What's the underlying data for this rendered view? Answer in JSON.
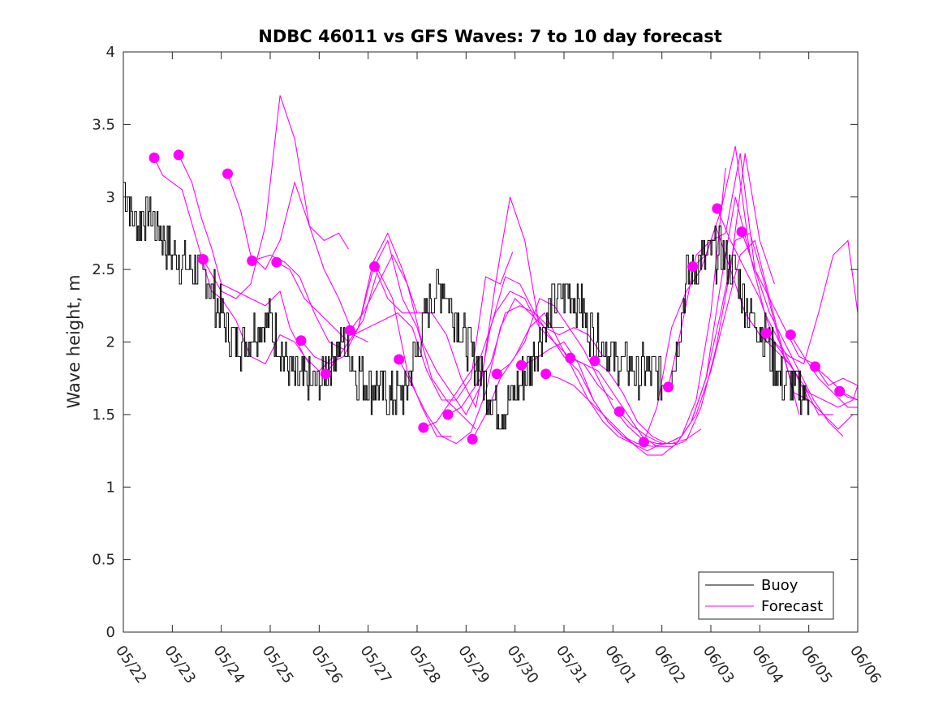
{
  "chart_data": {
    "type": "line",
    "title": "NDBC 46011 vs GFS Waves: 7 to 10 day forecast",
    "xlabel": "",
    "ylabel": "Wave height, m",
    "xlim": [
      0,
      15
    ],
    "ylim": [
      0,
      4
    ],
    "x_tick_labels": [
      "05/22",
      "05/23",
      "05/24",
      "05/25",
      "05/26",
      "05/27",
      "05/28",
      "05/29",
      "05/30",
      "05/31",
      "06/01",
      "06/02",
      "06/03",
      "06/04",
      "06/05",
      "06/06"
    ],
    "y_ticks": [
      0,
      0.5,
      1,
      1.5,
      2,
      2.5,
      3,
      3.5,
      4
    ],
    "y_tick_labels": [
      "0",
      "0.5",
      "1",
      "1.5",
      "2",
      "2.5",
      "3",
      "3.5",
      "4"
    ],
    "grid": false,
    "legend_position": "bottom-right",
    "colors": {
      "buoy": "#000000",
      "forecast": "#ff00ff"
    },
    "series": [
      {
        "name": "Buoy",
        "x": [
          0,
          0.25,
          0.5,
          0.75,
          1.0,
          1.25,
          1.5,
          1.75,
          2.0,
          2.25,
          2.5,
          2.75,
          3.0,
          3.25,
          3.5,
          3.75,
          4.0,
          4.25,
          4.5,
          4.75,
          5.0,
          5.25,
          5.5,
          5.75,
          6.0,
          6.25,
          6.5,
          6.75,
          7.0,
          7.25,
          7.5,
          7.75,
          8.0,
          8.25,
          8.5,
          8.75,
          9.0,
          9.25,
          9.5,
          9.75,
          10.0,
          10.25,
          10.5,
          10.75,
          11.0,
          11.25,
          11.5,
          11.75,
          12.0,
          12.25,
          12.5,
          12.75,
          13.0,
          13.25,
          13.5,
          13.75,
          14.0
        ],
        "values": [
          3.1,
          2.8,
          2.9,
          2.75,
          2.6,
          2.55,
          2.5,
          2.4,
          2.2,
          2.0,
          2.0,
          2.1,
          2.15,
          1.9,
          1.75,
          1.7,
          1.7,
          1.9,
          2.0,
          1.8,
          1.7,
          1.7,
          1.6,
          1.65,
          1.95,
          2.3,
          2.4,
          2.2,
          2.0,
          1.85,
          1.6,
          1.55,
          1.65,
          1.8,
          2.0,
          2.25,
          2.35,
          2.3,
          2.1,
          2.0,
          1.9,
          1.85,
          1.8,
          1.8,
          1.75,
          1.85,
          2.45,
          2.55,
          2.6,
          2.6,
          2.5,
          2.2,
          2.1,
          1.9,
          1.7,
          1.7,
          1.6
        ]
      }
    ],
    "forecast_runs": [
      {
        "x": [
          0.63,
          0.8,
          1.0,
          1.2,
          1.5,
          1.8,
          2.0,
          2.3,
          2.6,
          2.9,
          3.2,
          3.5,
          3.8
        ],
        "values": [
          3.27,
          3.15,
          3.1,
          3.05,
          2.7,
          2.35,
          2.3,
          2.15,
          1.9,
          1.85,
          2.05,
          2.0,
          1.85
        ]
      },
      {
        "x": [
          1.13,
          1.4,
          1.6,
          1.8,
          2.0,
          2.3,
          2.6,
          2.9,
          3.2,
          3.4,
          3.7,
          4.0,
          4.3
        ],
        "values": [
          3.29,
          3.1,
          2.85,
          2.65,
          2.4,
          2.35,
          2.3,
          2.25,
          2.35,
          2.1,
          1.9,
          1.8,
          1.9
        ]
      },
      {
        "x": [
          1.63,
          2.0,
          2.3,
          2.6,
          2.9,
          3.2,
          3.5,
          3.8,
          4.1,
          4.4,
          4.7,
          5.0
        ],
        "values": [
          2.57,
          2.35,
          2.3,
          2.4,
          2.8,
          3.7,
          3.4,
          2.8,
          2.5,
          2.3,
          2.05,
          2.0
        ]
      },
      {
        "x": [
          2.13,
          2.4,
          2.6,
          2.9,
          3.2,
          3.5,
          3.8,
          4.1,
          4.4,
          4.6
        ],
        "values": [
          3.16,
          2.9,
          2.6,
          2.5,
          2.7,
          3.1,
          2.8,
          2.7,
          2.75,
          2.64
        ]
      },
      {
        "x": [
          2.63,
          3.0,
          3.3,
          3.6,
          3.9,
          4.2,
          4.5,
          4.8,
          5.1,
          5.4,
          5.7,
          6.0
        ],
        "values": [
          2.56,
          2.6,
          2.55,
          2.45,
          2.2,
          2.0,
          1.95,
          2.1,
          2.55,
          2.75,
          2.5,
          2.2
        ]
      },
      {
        "x": [
          3.13,
          3.4,
          3.7,
          4.0,
          4.3,
          4.6,
          4.9,
          5.2,
          5.5,
          5.8,
          6.1,
          6.4,
          6.7
        ],
        "values": [
          2.55,
          2.5,
          2.3,
          2.2,
          2.1,
          2.0,
          2.15,
          2.5,
          2.3,
          1.8,
          1.55,
          1.35,
          1.35
        ]
      },
      {
        "x": [
          3.63,
          3.9,
          4.2,
          4.5,
          4.8,
          5.1,
          5.4,
          5.7,
          6.0,
          6.3,
          6.6,
          6.9,
          7.2
        ],
        "values": [
          2.01,
          1.9,
          1.85,
          1.9,
          2.1,
          2.5,
          2.7,
          2.3,
          2.1,
          1.75,
          1.6,
          1.5,
          1.4
        ]
      },
      {
        "x": [
          4.13,
          4.4,
          4.7,
          5.0,
          5.3,
          5.6,
          5.9,
          6.2,
          6.5,
          6.8,
          7.1,
          7.4,
          7.7,
          7.95
        ],
        "values": [
          1.78,
          1.9,
          2.05,
          2.1,
          2.15,
          2.2,
          2.1,
          1.8,
          1.6,
          1.6,
          1.75,
          2.45,
          2.4,
          2.62
        ]
      },
      {
        "x": [
          4.63,
          4.9,
          5.2,
          5.5,
          5.8,
          6.1,
          6.4,
          6.7,
          7.0,
          7.3,
          7.6,
          7.9,
          8.2,
          8.5
        ],
        "values": [
          2.08,
          2.2,
          2.4,
          2.6,
          2.4,
          2.0,
          1.8,
          1.65,
          1.5,
          1.7,
          2.4,
          3.0,
          2.7,
          2.1
        ]
      },
      {
        "x": [
          5.13,
          5.4,
          5.7,
          6.0,
          6.3,
          6.6,
          6.9,
          7.2,
          7.5,
          7.8,
          8.1,
          8.4,
          8.7,
          9.0
        ],
        "values": [
          2.52,
          2.3,
          2.2,
          2.2,
          2.2,
          2.05,
          1.75,
          1.55,
          2.1,
          2.45,
          2.4,
          2.2,
          2.1,
          2.1
        ]
      },
      {
        "x": [
          5.63,
          5.9,
          6.2,
          6.5,
          6.8,
          7.1,
          7.4,
          7.7,
          8.0,
          8.3,
          8.6,
          8.9,
          9.2,
          9.5,
          9.8
        ],
        "values": [
          1.88,
          1.7,
          1.5,
          1.35,
          1.3,
          1.38,
          1.65,
          2.1,
          2.3,
          2.2,
          2.1,
          2.05,
          2.1,
          2.05,
          1.9
        ]
      },
      {
        "x": [
          6.13,
          6.4,
          6.7,
          7.0,
          7.3,
          7.6,
          7.9,
          8.2,
          8.5,
          8.8,
          9.1,
          9.4,
          9.7,
          10.0
        ],
        "values": [
          1.41,
          1.45,
          1.6,
          1.75,
          1.9,
          2.2,
          2.35,
          2.3,
          2.1,
          2.0,
          1.9,
          1.85,
          1.7,
          1.6
        ]
      },
      {
        "x": [
          6.63,
          6.9,
          7.2,
          7.5,
          7.8,
          8.1,
          8.4,
          8.7,
          9.0,
          9.3,
          9.6,
          9.9,
          10.2,
          10.5
        ],
        "values": [
          1.5,
          1.55,
          1.7,
          1.85,
          2.2,
          2.25,
          2.2,
          2.05,
          1.9,
          1.8,
          1.6,
          1.45,
          1.35,
          1.28
        ]
      },
      {
        "x": [
          7.13,
          7.4,
          7.7,
          8.0,
          8.3,
          8.6,
          8.9,
          9.2,
          9.5,
          9.8,
          10.1,
          10.4,
          10.7,
          11.0
        ],
        "values": [
          1.33,
          1.5,
          1.75,
          1.9,
          2.1,
          2.2,
          2.0,
          1.8,
          1.6,
          1.45,
          1.35,
          1.3,
          1.25,
          1.3
        ]
      },
      {
        "x": [
          7.63,
          7.9,
          8.2,
          8.5,
          8.8,
          9.1,
          9.4,
          9.7,
          10.0,
          10.3,
          10.6,
          10.9,
          11.2,
          11.5,
          11.8
        ],
        "values": [
          1.78,
          1.85,
          2.0,
          2.3,
          2.25,
          2.1,
          1.95,
          1.75,
          1.55,
          1.42,
          1.33,
          1.3,
          1.3,
          1.33,
          1.4
        ]
      },
      {
        "x": [
          8.13,
          8.4,
          8.7,
          9.0,
          9.3,
          9.6,
          9.9,
          10.2,
          10.5,
          10.8,
          11.1,
          11.4,
          11.7,
          12.0,
          12.3
        ],
        "values": [
          1.84,
          1.88,
          1.95,
          2.0,
          1.85,
          1.6,
          1.45,
          1.35,
          1.3,
          1.28,
          1.3,
          1.35,
          1.6,
          2.2,
          3.2
        ]
      },
      {
        "x": [
          8.63,
          8.9,
          9.2,
          9.5,
          9.8,
          10.1,
          10.4,
          10.7,
          11.0,
          11.3,
          11.6,
          11.9,
          12.2,
          12.5,
          12.8
        ],
        "values": [
          1.78,
          1.75,
          1.7,
          1.6,
          1.5,
          1.4,
          1.3,
          1.22,
          1.22,
          1.3,
          1.45,
          1.75,
          2.4,
          3.0,
          2.6
        ]
      },
      {
        "x": [
          9.13,
          9.4,
          9.7,
          10.0,
          10.3,
          10.6,
          10.9,
          11.2,
          11.5,
          11.8,
          12.1,
          12.4,
          12.7,
          13.0,
          13.3
        ],
        "values": [
          1.89,
          1.85,
          1.8,
          1.65,
          1.5,
          1.35,
          1.28,
          1.28,
          1.32,
          1.55,
          1.95,
          2.5,
          3.3,
          2.7,
          2.4
        ]
      },
      {
        "x": [
          9.63,
          9.9,
          10.2,
          10.5,
          10.8,
          11.1,
          11.4,
          11.7,
          12.0,
          12.3,
          12.6,
          12.9,
          13.2,
          13.5,
          13.8
        ],
        "values": [
          1.87,
          1.8,
          1.65,
          1.45,
          1.35,
          1.3,
          1.35,
          1.5,
          1.8,
          2.2,
          2.6,
          2.7,
          2.3,
          1.9,
          1.5
        ]
      },
      {
        "x": [
          10.13,
          10.4,
          10.7,
          11.0,
          11.3,
          11.6,
          11.9,
          12.2,
          12.5,
          12.8,
          13.1,
          13.4,
          13.7,
          14.0
        ],
        "values": [
          1.52,
          1.42,
          1.35,
          1.3,
          1.3,
          1.45,
          1.75,
          2.2,
          2.7,
          2.75,
          2.4,
          2.0,
          1.65,
          1.6
        ]
      },
      {
        "x": [
          10.63,
          10.9,
          11.2,
          11.5,
          11.8,
          12.1,
          12.4,
          12.7,
          13.0,
          13.3,
          13.6,
          13.9,
          14.2,
          14.5
        ],
        "values": [
          1.31,
          1.55,
          2.1,
          2.35,
          2.5,
          2.8,
          2.5,
          2.2,
          2.05,
          1.95,
          1.85,
          1.7,
          1.5,
          1.5
        ]
      },
      {
        "x": [
          11.13,
          11.4,
          11.7,
          12.0,
          12.3,
          12.6,
          12.9,
          13.2,
          13.5,
          13.8,
          14.1,
          14.4,
          14.7
        ],
        "values": [
          1.69,
          2.1,
          2.6,
          2.7,
          2.75,
          3.3,
          2.5,
          2.2,
          2.0,
          1.8,
          1.6,
          1.45,
          1.35
        ]
      },
      {
        "x": [
          11.63,
          11.9,
          12.2,
          12.5,
          12.8,
          13.1,
          13.4,
          13.7,
          14.0,
          14.3,
          14.6,
          14.9
        ],
        "values": [
          2.52,
          2.6,
          2.9,
          3.35,
          2.6,
          2.2,
          2.0,
          1.8,
          1.6,
          1.5,
          1.4,
          1.5
        ]
      },
      {
        "x": [
          12.13,
          12.4,
          12.7,
          13.0,
          13.3,
          13.6,
          13.9,
          14.2,
          14.5,
          14.8,
          15.0
        ],
        "values": [
          2.92,
          2.7,
          2.5,
          2.3,
          2.0,
          1.9,
          1.85,
          2.2,
          2.6,
          2.7,
          2.2
        ]
      },
      {
        "x": [
          12.63,
          12.9,
          13.2,
          13.5,
          13.8,
          14.1,
          14.4,
          14.7,
          15.0
        ],
        "values": [
          2.76,
          2.5,
          2.3,
          2.1,
          1.9,
          1.85,
          1.7,
          1.75,
          1.7
        ]
      },
      {
        "x": [
          13.13,
          13.4,
          13.7,
          14.0,
          14.3,
          14.6,
          14.9,
          15.0
        ],
        "values": [
          2.06,
          1.95,
          1.8,
          1.65,
          1.6,
          1.55,
          1.6,
          1.7
        ]
      },
      {
        "x": [
          13.63,
          13.9,
          14.2,
          14.5,
          14.8,
          15.0
        ],
        "values": [
          2.05,
          1.9,
          1.75,
          1.65,
          1.55,
          1.55
        ]
      },
      {
        "x": [
          14.13,
          14.4,
          14.7,
          15.0
        ],
        "values": [
          1.83,
          1.75,
          1.65,
          1.6
        ]
      },
      {
        "x": [
          14.63,
          14.8,
          15.0
        ],
        "values": [
          1.66,
          1.62,
          1.6
        ]
      }
    ],
    "legend": [
      {
        "label": "Buoy",
        "color": "#000000"
      },
      {
        "label": "Forecast",
        "color": "#ff00ff"
      }
    ]
  }
}
